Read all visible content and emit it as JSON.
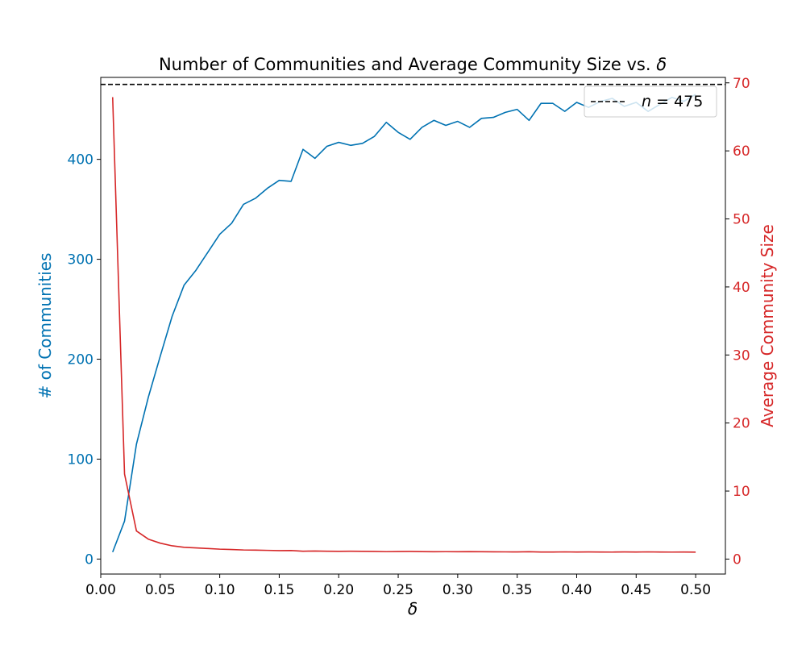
{
  "chart_data": {
    "type": "line",
    "title_main": "Number of Communities and Average Community Size vs. ",
    "title_symbol": "δ",
    "xlabel": "δ",
    "ylabel_left": "# of Communities",
    "ylabel_right": "Average Community Size",
    "xlim": [
      -0.0,
      0.525
    ],
    "ylim_left": [
      -15,
      482
    ],
    "ylim_right": [
      -2.2,
      70.8
    ],
    "xticks": [
      0.0,
      0.05,
      0.1,
      0.15,
      0.2,
      0.25,
      0.3,
      0.35,
      0.4,
      0.45,
      0.5
    ],
    "xtick_labels": [
      "0.00",
      "0.05",
      "0.10",
      "0.15",
      "0.20",
      "0.25",
      "0.30",
      "0.35",
      "0.40",
      "0.45",
      "0.50"
    ],
    "yticks_left": [
      0,
      100,
      200,
      300,
      400
    ],
    "ytick_labels_left": [
      "0",
      "100",
      "200",
      "300",
      "400"
    ],
    "yticks_right": [
      0,
      10,
      20,
      30,
      40,
      50,
      60,
      70
    ],
    "ytick_labels_right": [
      "0",
      "10",
      "20",
      "30",
      "40",
      "50",
      "60",
      "70"
    ],
    "grid": false,
    "legend_position": "top-right",
    "x": [
      0.01,
      0.02,
      0.03,
      0.04,
      0.05,
      0.06,
      0.07,
      0.08,
      0.09,
      0.1,
      0.11,
      0.12,
      0.13,
      0.14,
      0.15,
      0.16,
      0.17,
      0.18,
      0.19,
      0.2,
      0.21,
      0.22,
      0.23,
      0.24,
      0.25,
      0.26,
      0.27,
      0.28,
      0.29,
      0.3,
      0.31,
      0.32,
      0.33,
      0.34,
      0.35,
      0.36,
      0.37,
      0.38,
      0.39,
      0.4,
      0.41,
      0.42,
      0.43,
      0.44,
      0.45,
      0.46,
      0.47,
      0.48,
      0.49,
      0.5
    ],
    "series": [
      {
        "axis": "left",
        "color": "#0072b2",
        "values": [
          7,
          38,
          115,
          162,
          203,
          243,
          274,
          289,
          307,
          325,
          336,
          355,
          361,
          371,
          379,
          378,
          410,
          401,
          413,
          417,
          414,
          416,
          423,
          437,
          427,
          420,
          432,
          439,
          434,
          438,
          432,
          441,
          442,
          447,
          450,
          439,
          456,
          456,
          448,
          457,
          452,
          458,
          461,
          453,
          457,
          448,
          455,
          462,
          458,
          465
        ]
      },
      {
        "axis": "right",
        "color": "#d62728",
        "values": [
          67.9,
          12.5,
          4.13,
          2.93,
          2.34,
          1.95,
          1.73,
          1.64,
          1.55,
          1.46,
          1.41,
          1.34,
          1.32,
          1.28,
          1.25,
          1.26,
          1.16,
          1.18,
          1.15,
          1.14,
          1.15,
          1.14,
          1.12,
          1.09,
          1.11,
          1.13,
          1.1,
          1.08,
          1.09,
          1.08,
          1.1,
          1.08,
          1.07,
          1.06,
          1.05,
          1.08,
          1.04,
          1.04,
          1.06,
          1.04,
          1.05,
          1.04,
          1.03,
          1.05,
          1.04,
          1.06,
          1.04,
          1.03,
          1.04,
          1.02
        ]
      }
    ],
    "reference_line": {
      "value": 475,
      "axis": "left",
      "color": "#000000",
      "style": "dashed",
      "legend_var": "n",
      "legend_eq": " = ",
      "legend_num": "475"
    },
    "tick_colors": {
      "left": "#0072b2",
      "right": "#d62728",
      "x": "#000000"
    }
  }
}
